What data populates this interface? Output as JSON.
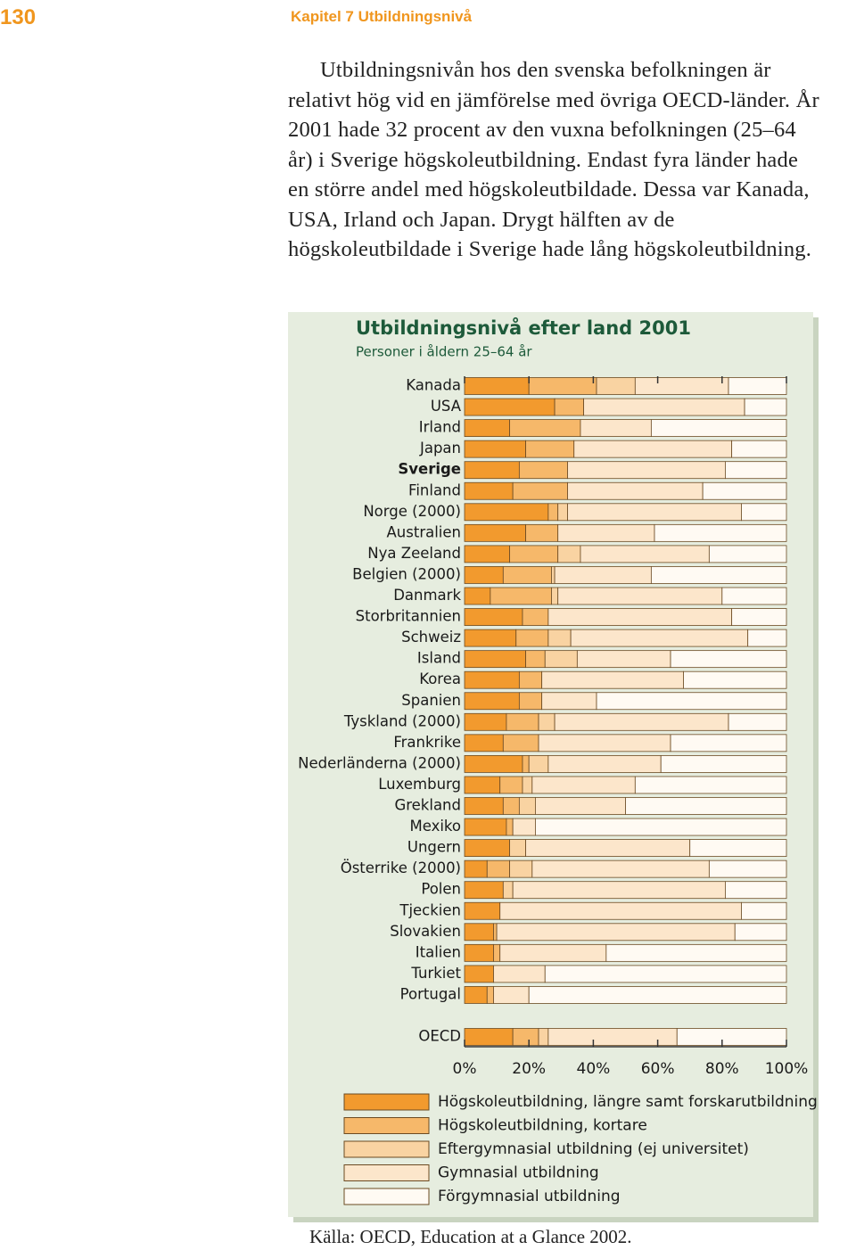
{
  "header": {
    "page_number": "130",
    "chapter": "Kapitel 7 Utbildningsnivå"
  },
  "paragraph": "Utbildningsnivån hos den svenska befolkningen är relativt hög vid en jämförelse med övriga OECD-länder. År 2001 hade 32 procent av den vuxna befolkningen (25–64 år) i Sverige högskoleutbildning. Endast fyra länder hade en större andel med högskoleutbildade. Dessa var Kanada, USA, Irland och Japan. Drygt hälften av de högskoleutbildade i Sverige hade lång högskoleutbildning.",
  "chart_data": {
    "type": "stacked_barh",
    "title": "Utbildningsnivå efter land 2001",
    "subtitle": "Personer i åldern 25–64 år",
    "categories": [
      "Kanada",
      "USA",
      "Irland",
      "Japan",
      "Sverige",
      "Finland",
      "Norge (2000)",
      "Australien",
      "Nya Zeeland",
      "Belgien (2000)",
      "Danmark",
      "Storbritannien",
      "Schweiz",
      "Island",
      "Korea",
      "Spanien",
      "Tyskland (2000)",
      "Frankrike",
      "Nederländerna (2000)",
      "Luxemburg",
      "Grekland",
      "Mexiko",
      "Ungern",
      "Österrike (2000)",
      "Polen",
      "Tjeckien",
      "Slovakien",
      "Italien",
      "Turkiet",
      "Portugal",
      "OECD"
    ],
    "series": [
      {
        "name": "Högskoleutbildning, längre samt forskarutbildning",
        "color": "#f29a2e",
        "values": [
          20,
          28,
          14,
          19,
          17,
          15,
          26,
          19,
          14,
          12,
          8,
          18,
          16,
          19,
          17,
          17,
          13,
          12,
          18,
          11,
          12,
          13,
          14,
          7,
          12,
          11,
          9,
          9,
          9,
          7,
          15
        ]
      },
      {
        "name": "Högskoleutbildning, kortare",
        "color": "#f6b86a",
        "values": [
          21,
          9,
          22,
          15,
          15,
          17,
          3,
          10,
          15,
          15,
          19,
          8,
          10,
          6,
          7,
          7,
          10,
          11,
          2,
          7,
          5,
          2,
          0,
          7,
          0,
          0,
          1,
          2,
          0,
          2,
          8
        ]
      },
      {
        "name": "Eftergymnasial utbildning (ej universitet)",
        "color": "#f9d3a2",
        "values": [
          12,
          0,
          0,
          0,
          0,
          0,
          3,
          0,
          7,
          1,
          2,
          0,
          7,
          10,
          0,
          0,
          5,
          0,
          6,
          3,
          5,
          0,
          5,
          7,
          3,
          0,
          0,
          0,
          0,
          0,
          3
        ]
      },
      {
        "name": "Gymnasial utbildning",
        "color": "#fce6cb",
        "values": [
          29,
          50,
          22,
          49,
          49,
          42,
          54,
          30,
          40,
          30,
          51,
          57,
          55,
          29,
          44,
          17,
          54,
          41,
          35,
          32,
          28,
          7,
          51,
          55,
          66,
          75,
          74,
          33,
          16,
          11,
          40
        ]
      },
      {
        "name": "Förgymnasial utbildning",
        "color": "#fffaf3",
        "values": [
          18,
          13,
          42,
          17,
          19,
          26,
          14,
          41,
          24,
          42,
          20,
          17,
          12,
          36,
          32,
          59,
          18,
          36,
          39,
          47,
          50,
          78,
          30,
          24,
          19,
          14,
          16,
          56,
          75,
          80,
          34
        ]
      }
    ],
    "xlim": [
      0,
      100
    ],
    "xticks": [
      {
        "value": 0,
        "label": "0%"
      },
      {
        "value": 20,
        "label": "20%"
      },
      {
        "value": 40,
        "label": "40%"
      },
      {
        "value": 60,
        "label": "60%"
      },
      {
        "value": 80,
        "label": "80%"
      },
      {
        "value": 100,
        "label": "100%"
      }
    ]
  },
  "source": "Källa: OECD, Education at a Glance 2002."
}
